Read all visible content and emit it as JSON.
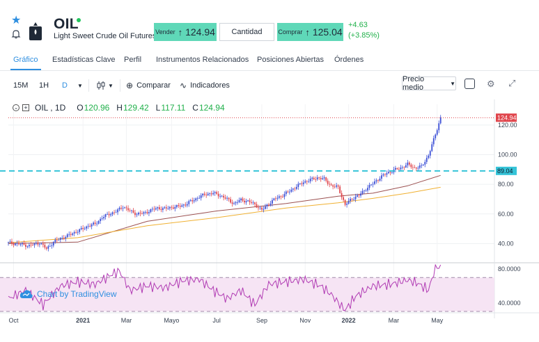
{
  "header": {
    "symbol": "OIL",
    "name": "Light Sweet Crude Oil Futures",
    "sell_label": "Vender",
    "sell_arrow": "↑",
    "sell_price": "124.94",
    "quantity_label": "Cantidad",
    "buy_label": "Comprar",
    "buy_arrow": "↑",
    "buy_price": "125.04",
    "change_abs": "+4.63",
    "change_pct": "(+3.85%)"
  },
  "tabs": [
    "Gráfico",
    "Estadísticas Clave",
    "Perfil",
    "Instrumentos Relacionados",
    "Posiciones Abiertas",
    "Órdenes"
  ],
  "toolbar": {
    "intervals": [
      "15M",
      "1H",
      "D"
    ],
    "compare": "Comparar",
    "indicators": "Indicadores",
    "price_type": "Precio medio"
  },
  "legend": {
    "symbol": "OIL , 1D",
    "o_label": "O",
    "o_value": "120.96",
    "h_label": "H",
    "h_value": "129.42",
    "l_label": "L",
    "l_value": "117.11",
    "c_label": "C",
    "c_value": "124.94"
  },
  "watermark": "Chart by TradingView",
  "colors": {
    "up": "#22b14c",
    "accent": "#2f8fe0",
    "button_green": "#5fd8b8",
    "candle_up": "#3b4fd6",
    "candle_down": "#e0454c",
    "ma_long": "#9b5050",
    "ma_short": "#f0b030",
    "rsi_line": "#b03ab3",
    "rsi_band": "#f6e4f4",
    "level_line": "#35c4d8"
  },
  "chart_data": {
    "type": "candlestick",
    "x_labels": [
      "Oct",
      "2021",
      "Mar",
      "Mayo",
      "Jul",
      "Sep",
      "Nov",
      "2022",
      "Mar",
      "May"
    ],
    "y_ticks": [
      "120.00",
      "100.00",
      "80.00",
      "60.00",
      "40.00"
    ],
    "ylim": [
      28,
      134
    ],
    "last_price": "124.94",
    "horizontal_level": "89.04",
    "price_series": [
      {
        "x": 0,
        "y": 40.5
      },
      {
        "x": 6,
        "y": 39.8
      },
      {
        "x": 12,
        "y": 38.5
      },
      {
        "x": 18,
        "y": 40.5
      },
      {
        "x": 22,
        "y": 36.5
      },
      {
        "x": 26,
        "y": 41
      },
      {
        "x": 30,
        "y": 43.5
      },
      {
        "x": 34,
        "y": 45.2
      },
      {
        "x": 38,
        "y": 47.5
      },
      {
        "x": 42,
        "y": 49.5
      },
      {
        "x": 46,
        "y": 52
      },
      {
        "x": 50,
        "y": 53.2
      },
      {
        "x": 54,
        "y": 57.5
      },
      {
        "x": 58,
        "y": 60
      },
      {
        "x": 62,
        "y": 61.5
      },
      {
        "x": 66,
        "y": 65
      },
      {
        "x": 70,
        "y": 62
      },
      {
        "x": 74,
        "y": 60
      },
      {
        "x": 78,
        "y": 60.5
      },
      {
        "x": 82,
        "y": 62.5
      },
      {
        "x": 86,
        "y": 64
      },
      {
        "x": 90,
        "y": 63.5
      },
      {
        "x": 94,
        "y": 64.5
      },
      {
        "x": 98,
        "y": 65
      },
      {
        "x": 102,
        "y": 66.5
      },
      {
        "x": 106,
        "y": 69
      },
      {
        "x": 110,
        "y": 71.5
      },
      {
        "x": 114,
        "y": 73.5
      },
      {
        "x": 118,
        "y": 74
      },
      {
        "x": 122,
        "y": 72.5
      },
      {
        "x": 126,
        "y": 70
      },
      {
        "x": 130,
        "y": 67
      },
      {
        "x": 134,
        "y": 69.5
      },
      {
        "x": 138,
        "y": 68.5
      },
      {
        "x": 142,
        "y": 66.5
      },
      {
        "x": 146,
        "y": 62.5
      },
      {
        "x": 150,
        "y": 67
      },
      {
        "x": 154,
        "y": 70.5
      },
      {
        "x": 158,
        "y": 72.5
      },
      {
        "x": 162,
        "y": 75.5
      },
      {
        "x": 166,
        "y": 78.5
      },
      {
        "x": 170,
        "y": 81.5
      },
      {
        "x": 174,
        "y": 83
      },
      {
        "x": 178,
        "y": 84.5
      },
      {
        "x": 182,
        "y": 83.5
      },
      {
        "x": 186,
        "y": 79
      },
      {
        "x": 190,
        "y": 78
      },
      {
        "x": 194,
        "y": 66
      },
      {
        "x": 198,
        "y": 70.5
      },
      {
        "x": 202,
        "y": 72.5
      },
      {
        "x": 206,
        "y": 77
      },
      {
        "x": 210,
        "y": 80.5
      },
      {
        "x": 214,
        "y": 84.5
      },
      {
        "x": 218,
        "y": 87.5
      },
      {
        "x": 222,
        "y": 89.5
      },
      {
        "x": 226,
        "y": 91
      },
      {
        "x": 230,
        "y": 93.5
      },
      {
        "x": 234,
        "y": 91
      },
      {
        "x": 238,
        "y": 92
      },
      {
        "x": 242,
        "y": 99.5
      },
      {
        "x": 245,
        "y": 110
      },
      {
        "x": 247,
        "y": 117.5
      },
      {
        "x": 249,
        "y": 124.94
      }
    ],
    "ma_long": [
      {
        "x": 0,
        "y": 40
      },
      {
        "x": 40,
        "y": 41
      },
      {
        "x": 80,
        "y": 55
      },
      {
        "x": 120,
        "y": 62
      },
      {
        "x": 160,
        "y": 67
      },
      {
        "x": 190,
        "y": 72
      },
      {
        "x": 210,
        "y": 74
      },
      {
        "x": 230,
        "y": 79
      },
      {
        "x": 249,
        "y": 86
      }
    ],
    "ma_short": [
      {
        "x": 0,
        "y": 40.5
      },
      {
        "x": 40,
        "y": 44
      },
      {
        "x": 80,
        "y": 52
      },
      {
        "x": 120,
        "y": 57.5
      },
      {
        "x": 160,
        "y": 64
      },
      {
        "x": 190,
        "y": 67.5
      },
      {
        "x": 210,
        "y": 70.5
      },
      {
        "x": 230,
        "y": 74
      },
      {
        "x": 249,
        "y": 78
      }
    ],
    "rsi": {
      "ylim": [
        30,
        85
      ],
      "y_ticks": [
        "80.0000",
        "40.0000"
      ],
      "band": [
        30,
        70
      ],
      "series": [
        {
          "x": 0,
          "y": 45
        },
        {
          "x": 10,
          "y": 55
        },
        {
          "x": 20,
          "y": 38
        },
        {
          "x": 30,
          "y": 60
        },
        {
          "x": 40,
          "y": 65
        },
        {
          "x": 50,
          "y": 62
        },
        {
          "x": 58,
          "y": 72
        },
        {
          "x": 64,
          "y": 78
        },
        {
          "x": 70,
          "y": 55
        },
        {
          "x": 80,
          "y": 60
        },
        {
          "x": 90,
          "y": 58
        },
        {
          "x": 100,
          "y": 66
        },
        {
          "x": 110,
          "y": 68
        },
        {
          "x": 118,
          "y": 55
        },
        {
          "x": 126,
          "y": 45
        },
        {
          "x": 134,
          "y": 55
        },
        {
          "x": 142,
          "y": 38
        },
        {
          "x": 150,
          "y": 62
        },
        {
          "x": 160,
          "y": 65
        },
        {
          "x": 170,
          "y": 68
        },
        {
          "x": 180,
          "y": 60
        },
        {
          "x": 186,
          "y": 50
        },
        {
          "x": 194,
          "y": 31
        },
        {
          "x": 200,
          "y": 48
        },
        {
          "x": 210,
          "y": 60
        },
        {
          "x": 220,
          "y": 62
        },
        {
          "x": 230,
          "y": 67
        },
        {
          "x": 236,
          "y": 63
        },
        {
          "x": 242,
          "y": 55
        },
        {
          "x": 246,
          "y": 82
        },
        {
          "x": 249,
          "y": 84
        }
      ]
    }
  }
}
